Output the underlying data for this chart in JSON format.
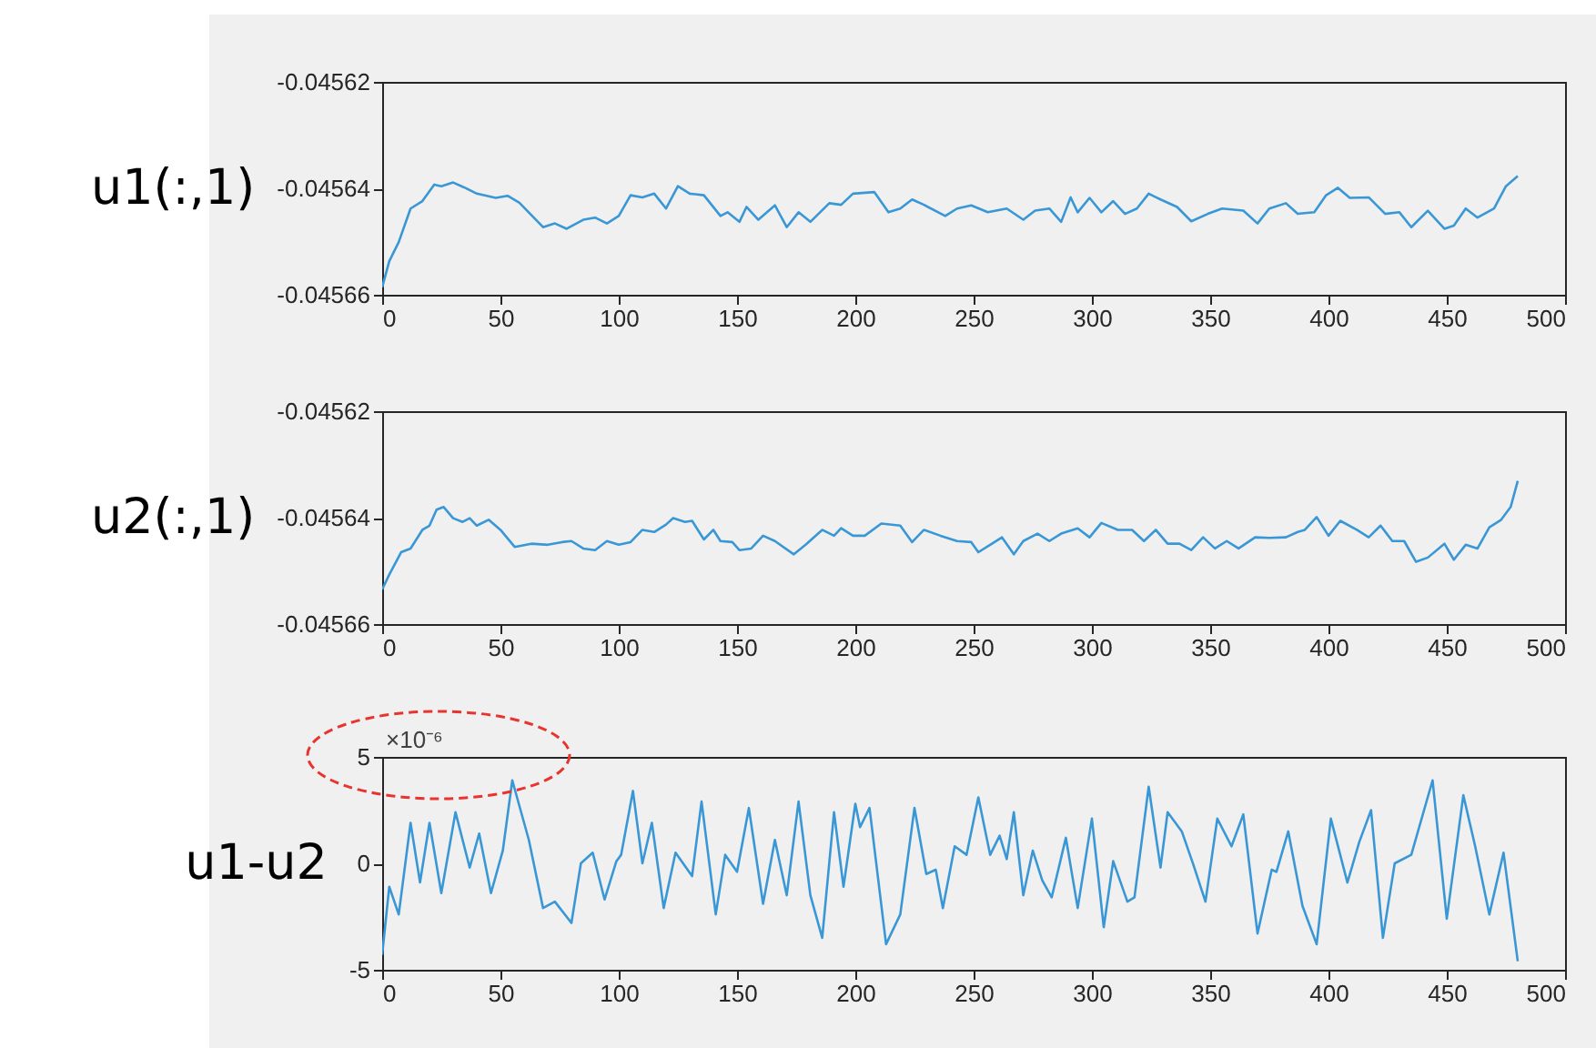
{
  "chart_data": [
    {
      "type": "line",
      "ylabel": "u1(:,1)",
      "color": "#3a97d6",
      "xlim": [
        0,
        500
      ],
      "xticks": [
        0,
        50,
        100,
        150,
        200,
        250,
        300,
        350,
        400,
        450,
        500
      ],
      "ylim": [
        -0.04566,
        -0.04562
      ],
      "yticks": [
        -0.04566,
        -0.04564,
        -0.04562
      ],
      "grid": false,
      "x": [
        0,
        3,
        7,
        12,
        17,
        22,
        25,
        30,
        35,
        40,
        48,
        53,
        58,
        68,
        73,
        78,
        85,
        90,
        95,
        100,
        105,
        110,
        115,
        120,
        125,
        130,
        136,
        143,
        146,
        151,
        154,
        159,
        166,
        171,
        176,
        181,
        189,
        194,
        199,
        208,
        214,
        219,
        224,
        229,
        238,
        243,
        249,
        256,
        264,
        271,
        276,
        282,
        287,
        291,
        294,
        299,
        304,
        309,
        314,
        319,
        324,
        329,
        336,
        342,
        349,
        355,
        364,
        370,
        375,
        382,
        387,
        394,
        399,
        404,
        409,
        417,
        424,
        430,
        435,
        442,
        449,
        453,
        458,
        463,
        470,
        475,
        480
      ],
      "values": [
        -0.0456586,
        -0.0456537,
        -0.0456501,
        -0.0456438,
        -0.0456424,
        -0.0456393,
        -0.0456396,
        -0.0456389,
        -0.0456399,
        -0.045641,
        -0.0456418,
        -0.0456414,
        -0.0456427,
        -0.0456473,
        -0.0456466,
        -0.0456476,
        -0.0456459,
        -0.0456455,
        -0.0456466,
        -0.0456452,
        -0.0456413,
        -0.0456417,
        -0.045641,
        -0.0456438,
        -0.0456396,
        -0.045641,
        -0.0456413,
        -0.0456452,
        -0.0456445,
        -0.0456463,
        -0.0456435,
        -0.0456459,
        -0.0456432,
        -0.0456473,
        -0.0456445,
        -0.0456463,
        -0.0456428,
        -0.0456431,
        -0.045641,
        -0.0456407,
        -0.0456445,
        -0.0456438,
        -0.0456421,
        -0.0456431,
        -0.0456452,
        -0.0456438,
        -0.0456432,
        -0.0456445,
        -0.0456438,
        -0.0456459,
        -0.0456442,
        -0.0456438,
        -0.0456463,
        -0.0456417,
        -0.0456445,
        -0.0456418,
        -0.0456445,
        -0.0456424,
        -0.0456448,
        -0.0456438,
        -0.045641,
        -0.0456421,
        -0.0456435,
        -0.0456462,
        -0.0456448,
        -0.0456438,
        -0.0456442,
        -0.0456466,
        -0.0456438,
        -0.0456428,
        -0.0456448,
        -0.0456445,
        -0.0456413,
        -0.0456399,
        -0.0456418,
        -0.0456417,
        -0.0456448,
        -0.0456445,
        -0.0456473,
        -0.0456442,
        -0.0456476,
        -0.045647,
        -0.0456438,
        -0.0456455,
        -0.0456438,
        -0.0456396,
        -0.0456377
      ]
    },
    {
      "type": "line",
      "ylabel": "u2(:,1)",
      "color": "#3a97d6",
      "xlim": [
        0,
        500
      ],
      "xticks": [
        0,
        50,
        100,
        150,
        200,
        250,
        300,
        350,
        400,
        450,
        500
      ],
      "ylim": [
        -0.04566,
        -0.04562
      ],
      "yticks": [
        -0.04566,
        -0.04564,
        -0.04562
      ],
      "grid": false,
      "x": [
        0,
        3,
        8,
        12,
        17,
        20,
        23,
        26,
        30,
        34,
        37,
        40,
        45,
        50,
        56,
        63,
        70,
        76,
        80,
        85,
        90,
        95,
        100,
        105,
        110,
        115,
        120,
        123,
        128,
        131,
        136,
        140,
        143,
        148,
        151,
        156,
        161,
        166,
        174,
        179,
        186,
        191,
        194,
        199,
        204,
        211,
        219,
        224,
        229,
        236,
        243,
        249,
        252,
        257,
        262,
        267,
        271,
        277,
        282,
        287,
        294,
        299,
        304,
        311,
        317,
        322,
        327,
        332,
        337,
        342,
        347,
        352,
        357,
        362,
        369,
        375,
        382,
        387,
        390,
        395,
        400,
        405,
        412,
        417,
        422,
        427,
        432,
        437,
        442,
        449,
        453,
        458,
        463,
        468,
        473,
        477,
        480
      ],
      "values": [
        -0.0456535,
        -0.0456507,
        -0.0456465,
        -0.0456458,
        -0.0456423,
        -0.0456415,
        -0.0456385,
        -0.045638,
        -0.0456401,
        -0.0456408,
        -0.0456401,
        -0.0456415,
        -0.0456404,
        -0.0456423,
        -0.0456455,
        -0.0456449,
        -0.0456451,
        -0.0456446,
        -0.0456444,
        -0.0456458,
        -0.0456461,
        -0.0456444,
        -0.0456451,
        -0.0456446,
        -0.0456423,
        -0.0456427,
        -0.0456413,
        -0.0456401,
        -0.0456408,
        -0.0456406,
        -0.0456441,
        -0.0456423,
        -0.0456444,
        -0.0456446,
        -0.0456461,
        -0.0456458,
        -0.0456434,
        -0.0456444,
        -0.0456469,
        -0.0456451,
        -0.0456423,
        -0.0456434,
        -0.045642,
        -0.0456434,
        -0.0456434,
        -0.0456411,
        -0.0456415,
        -0.0456446,
        -0.0456423,
        -0.0456434,
        -0.0456444,
        -0.0456446,
        -0.0456465,
        -0.0456451,
        -0.0456437,
        -0.0456469,
        -0.0456444,
        -0.045643,
        -0.0456444,
        -0.045643,
        -0.045642,
        -0.0456437,
        -0.045641,
        -0.0456423,
        -0.0456423,
        -0.0456444,
        -0.0456423,
        -0.0456449,
        -0.0456449,
        -0.0456461,
        -0.0456437,
        -0.0456458,
        -0.0456444,
        -0.0456458,
        -0.0456437,
        -0.0456438,
        -0.0456437,
        -0.0456427,
        -0.0456423,
        -0.0456399,
        -0.0456434,
        -0.0456406,
        -0.0456423,
        -0.0456437,
        -0.0456415,
        -0.0456444,
        -0.0456444,
        -0.0456483,
        -0.0456475,
        -0.0456449,
        -0.0456479,
        -0.0456451,
        -0.0456458,
        -0.0456418,
        -0.0456404,
        -0.045638,
        -0.0456331
      ]
    },
    {
      "type": "line",
      "ylabel": "u1-u2",
      "color": "#3a97d6",
      "xlim": [
        0,
        500
      ],
      "xticks": [
        0,
        50,
        100,
        150,
        200,
        250,
        300,
        350,
        400,
        450,
        500
      ],
      "ylim": [
        -5,
        5
      ],
      "yticks": [
        -5,
        0,
        5
      ],
      "grid": false,
      "annotations": [
        "×10⁻⁶"
      ],
      "x": [
        0,
        3,
        7,
        12,
        16,
        20,
        25,
        31,
        37,
        41,
        46,
        51,
        55,
        62,
        68,
        73,
        80,
        84,
        89,
        94,
        99,
        101,
        106,
        110,
        114,
        119,
        124,
        131,
        135,
        141,
        145,
        150,
        155,
        161,
        166,
        171,
        176,
        181,
        186,
        191,
        195,
        200,
        202,
        206,
        213,
        219,
        225,
        230,
        234,
        237,
        242,
        247,
        252,
        257,
        261,
        264,
        267,
        271,
        275,
        279,
        283,
        289,
        294,
        300,
        305,
        309,
        315,
        318,
        324,
        329,
        332,
        338,
        343,
        348,
        353,
        359,
        364,
        370,
        376,
        378,
        383,
        389,
        395,
        401,
        408,
        413,
        418,
        423,
        428,
        435,
        444,
        450,
        457,
        462,
        468,
        474,
        480
      ],
      "values": [
        -4.3,
        -1.1,
        -2.4,
        1.9,
        -0.9,
        1.9,
        -1.4,
        2.4,
        -0.2,
        1.4,
        -1.4,
        0.6,
        3.9,
        1.1,
        -2.1,
        -1.8,
        -2.8,
        0,
        0.5,
        -1.7,
        0.1,
        0.4,
        3.4,
        0,
        1.9,
        -2.1,
        0.5,
        -0.6,
        2.9,
        -2.4,
        0.4,
        -0.4,
        2.6,
        -1.9,
        1.1,
        -1.5,
        2.9,
        -1.5,
        -3.5,
        2.4,
        -1.1,
        2.8,
        1.7,
        2.6,
        -3.8,
        -2.4,
        2.6,
        -0.5,
        -0.3,
        -2.1,
        0.8,
        0.4,
        3.1,
        0.4,
        1.3,
        0.2,
        2.4,
        -1.5,
        0.6,
        -0.8,
        -1.6,
        1.2,
        -2.1,
        2.1,
        -3,
        0.1,
        -1.8,
        -1.6,
        3.6,
        -0.2,
        2.4,
        1.5,
        -0.1,
        -1.8,
        2.1,
        0.8,
        2.3,
        -3.3,
        -0.3,
        -0.4,
        1.5,
        -2,
        -3.8,
        2.1,
        -0.9,
        1,
        2.5,
        -3.5,
        0,
        0.4,
        3.9,
        -2.6,
        3.2,
        0.8,
        -2.4,
        0.5,
        -4.6
      ]
    }
  ]
}
